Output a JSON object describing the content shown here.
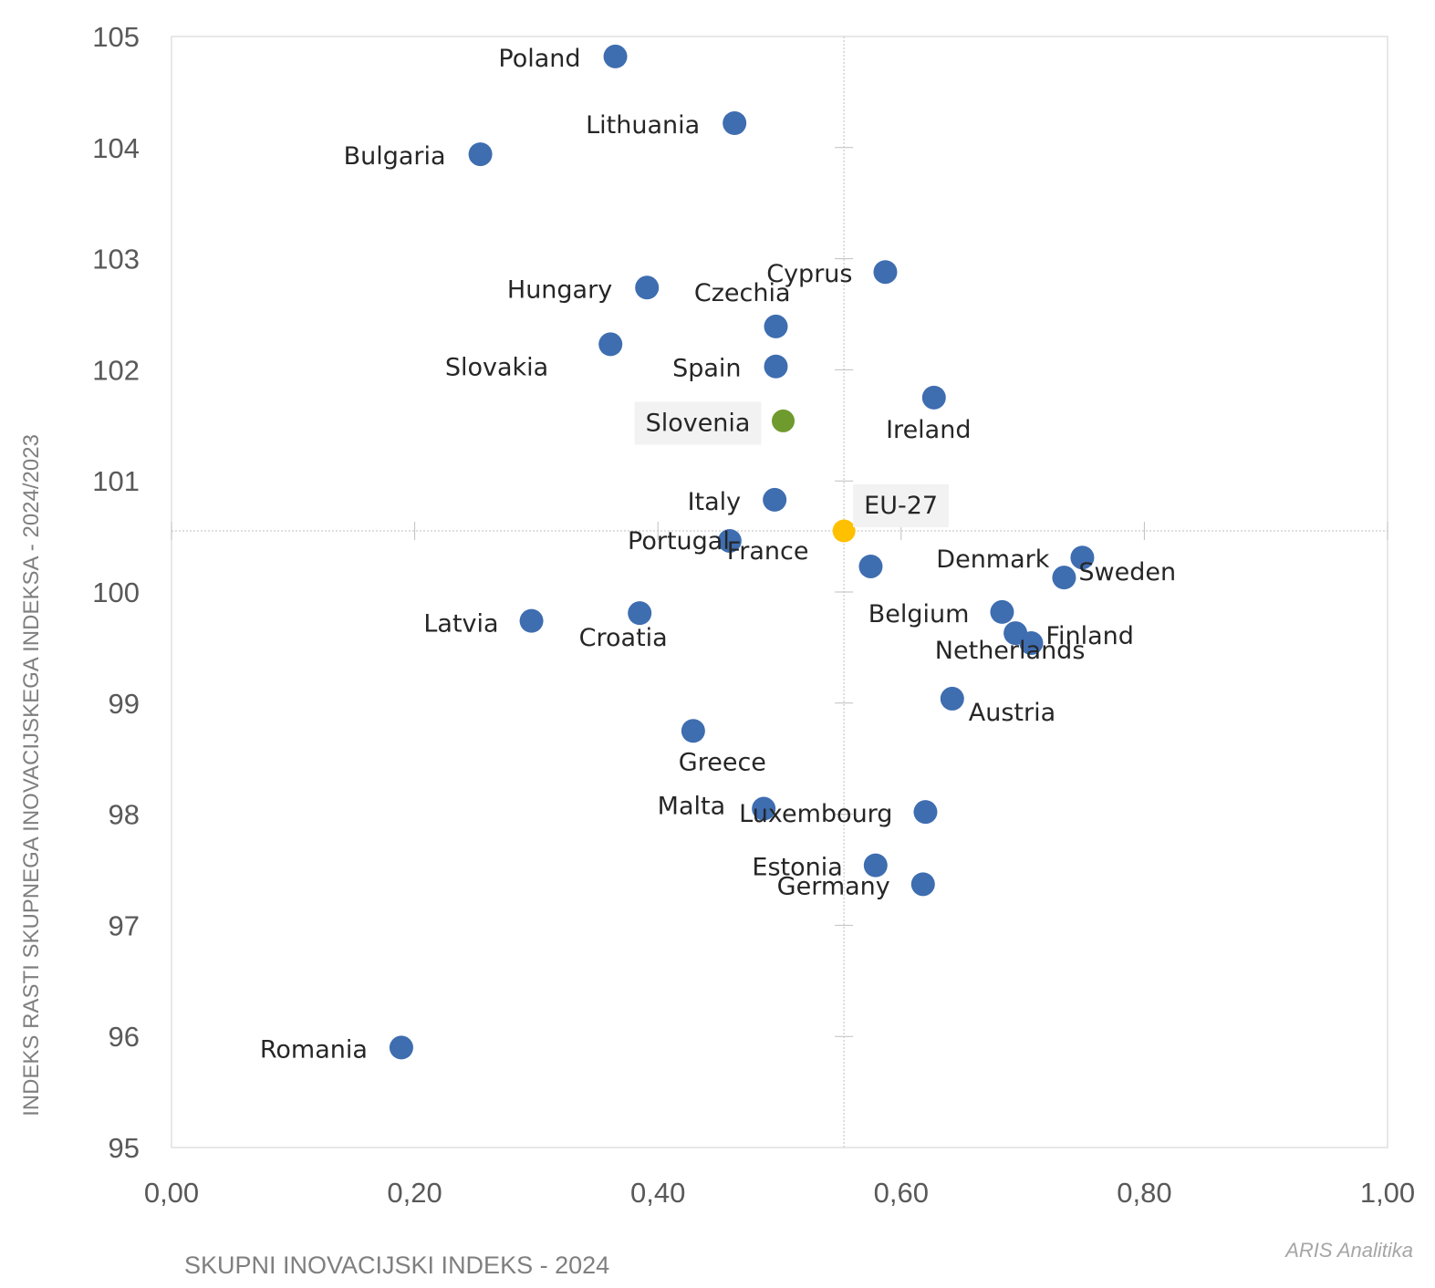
{
  "chart_data": {
    "type": "scatter",
    "xlabel": "Skupni inovacijski indeks - 2024",
    "ylabel": "Indeks rasti skupnega inovacijskega indeksa - 2024/2023",
    "xlim": [
      0,
      1
    ],
    "ylim": [
      95,
      105
    ],
    "x_ticks": [
      "0,00",
      "0,20",
      "0,40",
      "0,60",
      "0,80",
      "1,00"
    ],
    "y_ticks": [
      "95",
      "96",
      "97",
      "98",
      "99",
      "100",
      "101",
      "102",
      "103",
      "104",
      "105"
    ],
    "x_tick_values": [
      0,
      0.2,
      0.4,
      0.6,
      0.8,
      1.0
    ],
    "y_tick_values": [
      95,
      96,
      97,
      98,
      99,
      100,
      101,
      102,
      103,
      104,
      105
    ],
    "grid": false,
    "reference_lines": {
      "x": 0.553,
      "y": 100.55
    },
    "credit": "ARIS Analitika",
    "colors": {
      "default": "#3e6db0",
      "highlight": "#6f9a2e",
      "reference": "#ffc000",
      "label_box": "#f2f2f2"
    },
    "points": [
      {
        "name": "Poland",
        "x": 0.365,
        "y": 104.82
      },
      {
        "name": "Lithuania",
        "x": 0.463,
        "y": 104.22
      },
      {
        "name": "Bulgaria",
        "x": 0.254,
        "y": 103.94
      },
      {
        "name": "Cyprus",
        "x": 0.587,
        "y": 102.88
      },
      {
        "name": "Hungary",
        "x": 0.391,
        "y": 102.74
      },
      {
        "name": "Czechia",
        "x": 0.497,
        "y": 102.39
      },
      {
        "name": "Slovakia",
        "x": 0.361,
        "y": 102.23
      },
      {
        "name": "Spain",
        "x": 0.497,
        "y": 102.03
      },
      {
        "name": "Ireland",
        "x": 0.627,
        "y": 101.75
      },
      {
        "name": "Slovenia",
        "x": 0.503,
        "y": 101.54,
        "highlight": "slovenia"
      },
      {
        "name": "Italy",
        "x": 0.496,
        "y": 100.83
      },
      {
        "name": "EU-27",
        "x": 0.553,
        "y": 100.55,
        "highlight": "eu"
      },
      {
        "name": "Portugal",
        "x": 0.459,
        "y": 100.46
      },
      {
        "name": "Denmark",
        "x": 0.749,
        "y": 100.31
      },
      {
        "name": "France",
        "x": 0.575,
        "y": 100.23
      },
      {
        "name": "Sweden",
        "x": 0.734,
        "y": 100.13
      },
      {
        "name": "Croatia",
        "x": 0.385,
        "y": 99.81
      },
      {
        "name": "Belgium",
        "x": 0.683,
        "y": 99.82
      },
      {
        "name": "Latvia",
        "x": 0.296,
        "y": 99.74
      },
      {
        "name": "Finland",
        "x": 0.707,
        "y": 99.54
      },
      {
        "name": "Netherlands",
        "x": 0.694,
        "y": 99.63
      },
      {
        "name": "Austria",
        "x": 0.642,
        "y": 99.04
      },
      {
        "name": "Greece",
        "x": 0.429,
        "y": 98.75
      },
      {
        "name": "Malta",
        "x": 0.487,
        "y": 98.05
      },
      {
        "name": "Luxembourg",
        "x": 0.62,
        "y": 98.02
      },
      {
        "name": "Estonia",
        "x": 0.579,
        "y": 97.54
      },
      {
        "name": "Germany",
        "x": 0.618,
        "y": 97.37
      },
      {
        "name": "Romania",
        "x": 0.189,
        "y": 95.9
      }
    ]
  }
}
